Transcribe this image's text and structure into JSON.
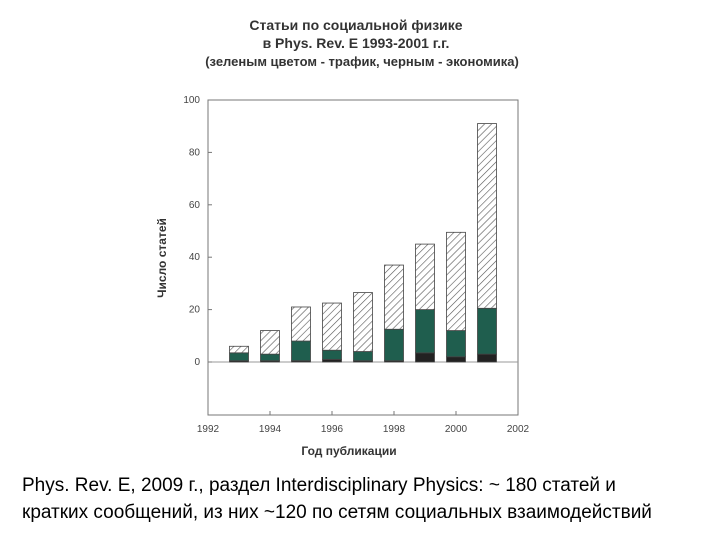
{
  "chart_data": {
    "type": "bar",
    "title_lines": [
      "Статьи по социальной физике",
      "в Phys. Rev. E 1993-2001 г.г.",
      "(зеленым цветом - трафик, черным - экономика)"
    ],
    "xlabel": "Год публикации",
    "ylabel": "Число статей",
    "xlim": [
      1992,
      2002
    ],
    "ylim": [
      0,
      100
    ],
    "x_ticks": [
      "1992",
      "1994",
      "1996",
      "1998",
      "2000",
      "2002"
    ],
    "y_ticks": [
      "100",
      "80",
      "60",
      "40",
      "20",
      "0"
    ],
    "stacked": true,
    "categories": [
      1993,
      1994,
      1995,
      1996,
      1997,
      1998,
      1999,
      2000,
      2001
    ],
    "series": [
      {
        "key": "economics",
        "values": [
          0.5,
          0.5,
          0.5,
          1,
          0.5,
          0.5,
          3.5,
          2,
          3
        ],
        "color": "#222222"
      },
      {
        "key": "traffic",
        "values": [
          3,
          2.5,
          7.5,
          3.5,
          3.5,
          12,
          16.5,
          10,
          17.5
        ],
        "color": "#1f5e4e"
      },
      {
        "key": "other",
        "values": [
          2.5,
          9,
          13,
          18,
          22.5,
          24.5,
          25,
          37.5,
          70.5
        ],
        "color": "#ffffff",
        "pattern": "hatch"
      }
    ],
    "grid": false,
    "legend": "none"
  },
  "caption": {
    "line1": "Phys. Rev. E, 2009 г., раздел Interdisciplinary Physics: ~ 180 статей и",
    "line2": "кратких сообщений, из них ~120 по сетям социальных взаимодействий"
  }
}
